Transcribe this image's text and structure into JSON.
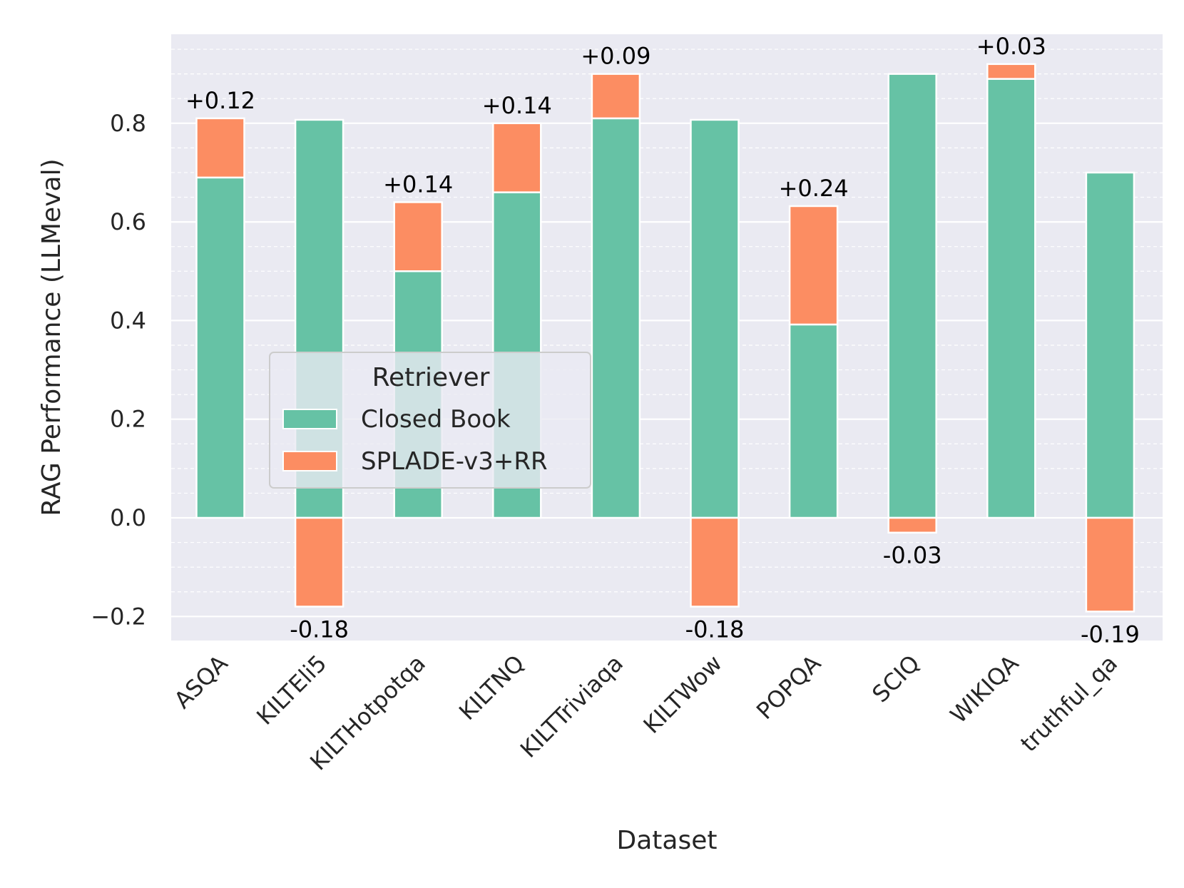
{
  "chart_data": {
    "type": "bar",
    "stacked": true,
    "title": "",
    "xlabel": "Dataset",
    "ylabel": "RAG Performance (LLMeval)",
    "categories": [
      "ASQA",
      "KILTEli5",
      "KILTHotpotqa",
      "KILTNQ",
      "KILTTriviaqa",
      "KILTWow",
      "POPQA",
      "SCIQ",
      "WIKIQA",
      "truthful_qa"
    ],
    "series": [
      {
        "name": "Closed Book",
        "color": "#66c2a5",
        "values": [
          0.69,
          0.807,
          0.5,
          0.66,
          0.81,
          0.807,
          0.392,
          0.9,
          0.89,
          0.7
        ]
      },
      {
        "name": "SPLADE-v3+RR",
        "color": "#fc8d62",
        "values": [
          0.12,
          -0.18,
          0.14,
          0.14,
          0.09,
          -0.18,
          0.24,
          -0.03,
          0.03,
          -0.19
        ]
      }
    ],
    "delta_labels": [
      "+0.12",
      "-0.18",
      "+0.14",
      "+0.14",
      "+0.09",
      "-0.18",
      "+0.24",
      "-0.03",
      "+0.03",
      "-0.19"
    ],
    "ylim": [
      -0.245,
      0.975
    ],
    "yticks": [
      -0.2,
      0.0,
      0.2,
      0.4,
      0.6,
      0.8
    ],
    "ytick_labels": [
      "−0.2",
      "0.0",
      "0.2",
      "0.4",
      "0.6",
      "0.8"
    ],
    "minor_grid_step": 0.05,
    "grid": true,
    "legend": {
      "title": "Retriever",
      "placement": "center-left"
    },
    "background": "#eaeaf2"
  }
}
